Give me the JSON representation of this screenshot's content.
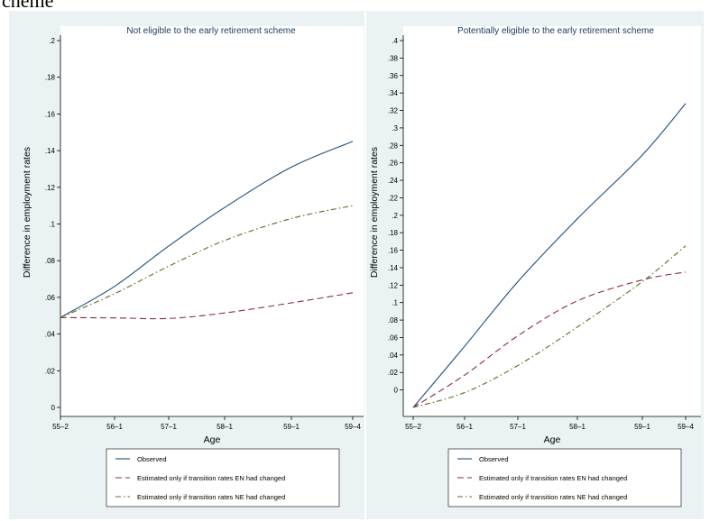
{
  "top_fragment": "cheme",
  "chart_data": [
    {
      "type": "line",
      "title": "Not eligible to the early retirement scheme",
      "xlabel": "Age",
      "ylabel": "Difference in employment rates",
      "x": [
        "55–2",
        "56–1",
        "57–1",
        "58–1",
        "59–1",
        "59–4"
      ],
      "ylim": [
        0,
        0.2
      ],
      "yticks": [
        "0",
        ".02",
        ".04",
        ".06",
        ".08",
        ".1",
        ".12",
        ".14",
        ".16",
        ".18",
        ".2"
      ],
      "grid": false,
      "series": [
        {
          "name": "Observed",
          "color": "#1f4e79",
          "dash": "solid",
          "values": [
            0.049,
            0.066,
            0.088,
            0.109,
            0.131,
            0.145
          ]
        },
        {
          "name": "Estimated only if transition rates EN had changed",
          "color": "#8b2b3a",
          "dash": "long-dash",
          "values": [
            0.049,
            0.0488,
            0.0485,
            0.0515,
            0.057,
            0.0625
          ]
        },
        {
          "name": "Estimated only if transition rates NE had changed",
          "color": "#5e6b25",
          "dash": "dash-dot",
          "values": [
            0.049,
            0.062,
            0.077,
            0.091,
            0.103,
            0.11
          ]
        }
      ],
      "legend": "bottom"
    },
    {
      "type": "line",
      "title": "Potentially eligible to the early retirement scheme",
      "xlabel": "Age",
      "ylabel": "Difference in employment rates",
      "x": [
        "55–2",
        "56–1",
        "57–1",
        "58–1",
        "59–1",
        "59–4"
      ],
      "ylim": [
        -0.02,
        0.4
      ],
      "yticks": [
        "0",
        ".02",
        ".04",
        ".06",
        ".08",
        ".1",
        ".12",
        ".14",
        ".16",
        ".18",
        ".2",
        ".22",
        ".24",
        ".26",
        ".28",
        ".3",
        ".32",
        ".34",
        ".36",
        ".38",
        ".4"
      ],
      "grid": false,
      "series": [
        {
          "name": "Observed",
          "color": "#1f4e79",
          "dash": "solid",
          "values": [
            -0.02,
            0.05,
            0.124,
            0.196,
            0.269,
            0.328
          ]
        },
        {
          "name": "Estimated only if transition rates EN had changed",
          "color": "#8b2b3a",
          "dash": "long-dash",
          "values": [
            -0.02,
            0.017,
            0.062,
            0.102,
            0.126,
            0.135
          ]
        },
        {
          "name": "Estimated only if transition rates NE had changed",
          "color": "#5e6b25",
          "dash": "dash-dot",
          "values": [
            -0.02,
            -0.003,
            0.028,
            0.072,
            0.124,
            0.165
          ]
        }
      ],
      "legend": "bottom"
    }
  ]
}
